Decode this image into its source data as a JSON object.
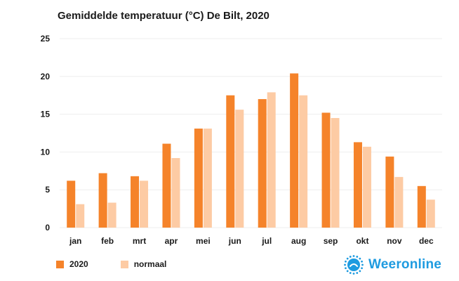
{
  "chart_data": {
    "type": "bar",
    "title": "Gemiddelde temperatuur (°C) De Bilt, 2020",
    "xlabel": "",
    "ylabel": "",
    "ylim": [
      0,
      25
    ],
    "yticks": [
      0,
      5,
      10,
      15,
      20,
      25
    ],
    "grid": true,
    "categories": [
      "jan",
      "feb",
      "mrt",
      "apr",
      "mei",
      "jun",
      "jul",
      "aug",
      "sep",
      "okt",
      "nov",
      "dec"
    ],
    "series": [
      {
        "name": "2020",
        "color": "#f5832a",
        "values": [
          6.2,
          7.2,
          6.8,
          11.1,
          13.1,
          17.5,
          17.0,
          20.4,
          15.2,
          11.3,
          9.4,
          5.5
        ]
      },
      {
        "name": "normaal",
        "color": "#fdcba4",
        "values": [
          3.1,
          3.3,
          6.2,
          9.2,
          13.1,
          15.6,
          17.9,
          17.5,
          14.5,
          10.7,
          6.7,
          3.7
        ]
      }
    ]
  },
  "legend": {
    "position": "bottom-left"
  },
  "brand": {
    "name": "Weeronline",
    "color": "#1e9be0",
    "icon": "sun-logo-icon"
  }
}
